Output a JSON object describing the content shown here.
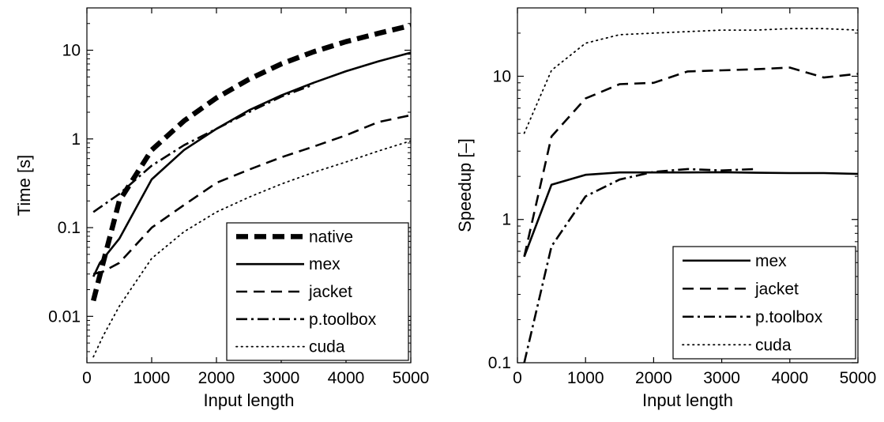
{
  "chart_data": [
    {
      "type": "line",
      "xlabel": "Input length",
      "ylabel": "Time [s]",
      "xlim": [
        0,
        5000
      ],
      "ylim": [
        0.003,
        30
      ],
      "yscale": "log",
      "xticks": [
        "0",
        "1000",
        "2000",
        "3000",
        "4000",
        "5000"
      ],
      "yticks": [
        "0.01",
        "0.1",
        "1",
        "10"
      ],
      "grid": false,
      "legend_position": "bottom-right",
      "series": [
        {
          "name": "native",
          "style": "thick-dashed",
          "x": [
            100,
            250,
            500,
            1000,
            1500,
            2000,
            2500,
            3000,
            3500,
            4000,
            4500,
            5000
          ],
          "y": [
            0.015,
            0.04,
            0.2,
            0.75,
            1.6,
            2.9,
            4.7,
            7.0,
            9.6,
            12.5,
            15.5,
            19
          ]
        },
        {
          "name": "mex",
          "style": "solid",
          "x": [
            100,
            200,
            500,
            1000,
            1500,
            2000,
            2500,
            3000,
            3500,
            4000,
            4500,
            5000
          ],
          "y": [
            0.028,
            0.04,
            0.075,
            0.35,
            0.75,
            1.3,
            2.1,
            3.1,
            4.3,
            5.8,
            7.5,
            9.4
          ]
        },
        {
          "name": "jacket",
          "style": "dashed",
          "x": [
            100,
            250,
            500,
            1000,
            1500,
            2000,
            2500,
            3000,
            3500,
            4000,
            4500,
            5000
          ],
          "y": [
            0.03,
            0.032,
            0.04,
            0.1,
            0.18,
            0.32,
            0.45,
            0.62,
            0.82,
            1.1,
            1.55,
            1.85
          ]
        },
        {
          "name": "p.toolbox",
          "style": "dash-dot",
          "x": [
            100,
            500,
            1000,
            1500,
            2000,
            2500,
            3000,
            3500
          ],
          "y": [
            0.15,
            0.24,
            0.5,
            0.85,
            1.3,
            2.0,
            3.0,
            4.1
          ]
        },
        {
          "name": "cuda",
          "style": "dotted",
          "x": [
            100,
            250,
            500,
            1000,
            1500,
            2000,
            2500,
            3000,
            3500,
            4000,
            4500,
            5000
          ],
          "y": [
            0.0035,
            0.006,
            0.013,
            0.045,
            0.09,
            0.15,
            0.22,
            0.31,
            0.42,
            0.55,
            0.73,
            0.95
          ]
        }
      ]
    },
    {
      "type": "line",
      "xlabel": "Input length",
      "ylabel": "Speedup [–]",
      "xlim": [
        0,
        5000
      ],
      "ylim": [
        0.1,
        30
      ],
      "yscale": "log",
      "xticks": [
        "0",
        "1000",
        "2000",
        "3000",
        "4000",
        "5000"
      ],
      "yticks": [
        "0.1",
        "1",
        "10"
      ],
      "grid": false,
      "legend_position": "bottom-right",
      "series": [
        {
          "name": "mex",
          "style": "solid",
          "x": [
            100,
            500,
            1000,
            1500,
            2000,
            2500,
            3000,
            3500,
            4000,
            4500,
            5000
          ],
          "y": [
            0.55,
            1.75,
            2.05,
            2.13,
            2.13,
            2.13,
            2.14,
            2.12,
            2.11,
            2.11,
            2.08
          ]
        },
        {
          "name": "jacket",
          "style": "dashed",
          "x": [
            100,
            500,
            1000,
            1500,
            2000,
            2500,
            3000,
            3500,
            4000,
            4500,
            5000
          ],
          "y": [
            0.55,
            3.8,
            7.0,
            8.8,
            9.0,
            10.8,
            11.0,
            11.2,
            11.5,
            9.8,
            10.4
          ]
        },
        {
          "name": "p.toolbox",
          "style": "dash-dot",
          "x": [
            100,
            500,
            1000,
            1500,
            2000,
            2500,
            3000,
            3500
          ],
          "y": [
            0.1,
            0.65,
            1.45,
            1.9,
            2.15,
            2.25,
            2.2,
            2.25
          ]
        },
        {
          "name": "cuda",
          "style": "dotted",
          "x": [
            100,
            500,
            1000,
            1500,
            2000,
            2500,
            3000,
            3500,
            4000,
            4500,
            5000
          ],
          "y": [
            4.0,
            11.0,
            17.0,
            19.5,
            20.0,
            20.5,
            21.0,
            21.0,
            21.5,
            21.5,
            21.0
          ]
        }
      ]
    }
  ]
}
